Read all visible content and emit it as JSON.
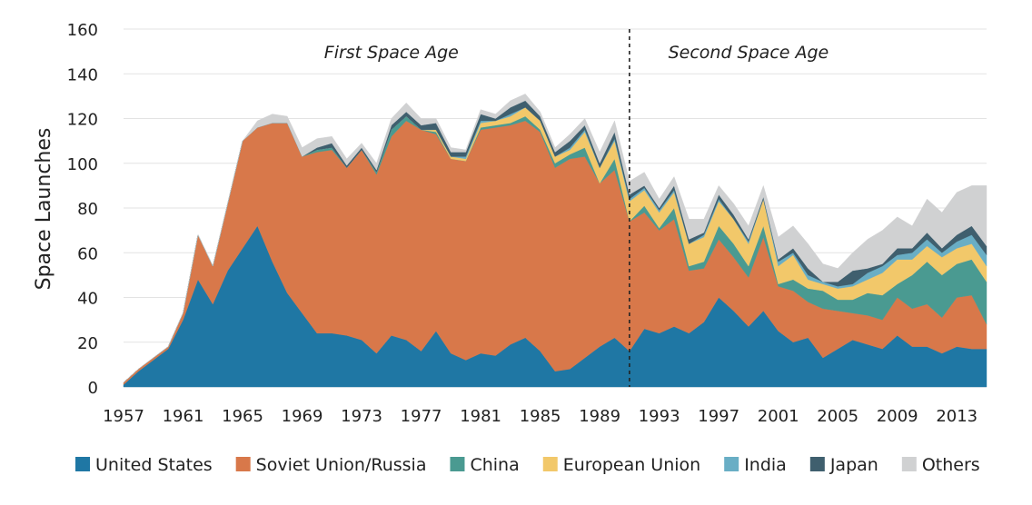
{
  "chart_data": {
    "type": "area",
    "stacked": true,
    "title": "",
    "xlabel": "",
    "ylabel": "Space Launches",
    "ylim": [
      0,
      160
    ],
    "yticks": [
      0,
      20,
      40,
      60,
      80,
      100,
      120,
      140,
      160
    ],
    "xlim": [
      1957,
      2015
    ],
    "xticks": [
      1957,
      1961,
      1965,
      1969,
      1973,
      1977,
      1981,
      1985,
      1989,
      1993,
      1997,
      2001,
      2005,
      2009,
      2013
    ],
    "grid": "horizontal",
    "legend_position": "bottom",
    "divider": {
      "year": 1991,
      "style": "dashed"
    },
    "annotations": [
      {
        "text": "First Space Age",
        "x": 1975
      },
      {
        "text": "Second Space Age",
        "x": 1999
      }
    ],
    "years": [
      1957,
      1958,
      1959,
      1960,
      1961,
      1962,
      1963,
      1964,
      1965,
      1966,
      1967,
      1968,
      1969,
      1970,
      1971,
      1972,
      1973,
      1974,
      1975,
      1976,
      1977,
      1978,
      1979,
      1980,
      1981,
      1982,
      1983,
      1984,
      1985,
      1986,
      1987,
      1988,
      1989,
      1990,
      1991,
      1992,
      1993,
      1994,
      1995,
      1996,
      1997,
      1998,
      1999,
      2000,
      2001,
      2002,
      2003,
      2004,
      2005,
      2006,
      2007,
      2008,
      2009,
      2010,
      2011,
      2012,
      2013,
      2014,
      2015
    ],
    "series": [
      {
        "name": "United States",
        "color": "#1f77a4",
        "values": [
          1,
          7,
          12,
          17,
          30,
          48,
          37,
          52,
          62,
          72,
          56,
          42,
          33,
          24,
          24,
          23,
          21,
          15,
          23,
          21,
          16,
          25,
          15,
          12,
          15,
          14,
          19,
          22,
          16,
          7,
          8,
          13,
          18,
          22,
          16,
          26,
          24,
          27,
          24,
          29,
          40,
          34,
          27,
          34,
          25,
          20,
          22,
          13,
          17,
          21,
          19,
          17,
          23,
          18,
          18,
          15,
          18,
          17,
          17
        ]
      },
      {
        "name": "Soviet Union/Russia",
        "color": "#d8784a",
        "values": [
          1,
          1,
          1,
          1,
          3,
          20,
          17,
          30,
          48,
          44,
          62,
          76,
          70,
          81,
          82,
          75,
          85,
          80,
          89,
          98,
          99,
          88,
          87,
          89,
          100,
          102,
          98,
          97,
          98,
          91,
          94,
          90,
          73,
          75,
          58,
          52,
          46,
          48,
          28,
          24,
          26,
          24,
          22,
          33,
          20,
          23,
          16,
          22,
          17,
          12,
          13,
          13,
          17,
          17,
          19,
          16,
          22,
          24,
          11
        ]
      },
      {
        "name": "China",
        "color": "#4a9a91",
        "values": [
          0,
          0,
          0,
          0,
          0,
          0,
          0,
          0,
          0,
          0,
          0,
          0,
          0,
          1,
          1,
          0,
          0,
          1,
          3,
          2,
          0,
          1,
          0,
          0,
          1,
          1,
          1,
          2,
          1,
          2,
          2,
          4,
          0,
          5,
          0,
          3,
          1,
          5,
          2,
          3,
          6,
          6,
          5,
          5,
          1,
          5,
          6,
          8,
          5,
          6,
          10,
          11,
          6,
          15,
          19,
          19,
          15,
          16,
          19
        ]
      },
      {
        "name": "European Union",
        "color": "#f2c86a",
        "values": [
          0,
          0,
          0,
          0,
          0,
          0,
          0,
          0,
          0,
          0,
          0,
          0,
          0,
          0,
          0,
          0,
          0,
          0,
          0,
          0,
          0,
          1,
          1,
          1,
          2,
          2,
          3,
          4,
          4,
          3,
          2,
          7,
          7,
          8,
          9,
          7,
          7,
          7,
          10,
          11,
          11,
          11,
          10,
          12,
          8,
          11,
          4,
          3,
          5,
          6,
          6,
          10,
          11,
          7,
          7,
          8,
          7,
          7,
          7
        ]
      },
      {
        "name": "India",
        "color": "#69aec5",
        "values": [
          0,
          0,
          0,
          0,
          0,
          0,
          0,
          0,
          0,
          0,
          0,
          0,
          0,
          0,
          0,
          0,
          0,
          0,
          0,
          0,
          0,
          0,
          0,
          1,
          1,
          0,
          1,
          0,
          0,
          0,
          1,
          1,
          0,
          1,
          1,
          1,
          1,
          1,
          0,
          1,
          1,
          0,
          1,
          0,
          2,
          1,
          2,
          1,
          1,
          1,
          3,
          3,
          2,
          3,
          3,
          2,
          3,
          4,
          5
        ]
      },
      {
        "name": "Japan",
        "color": "#3f5f6e",
        "values": [
          0,
          0,
          0,
          0,
          0,
          0,
          0,
          0,
          0,
          0,
          0,
          0,
          0,
          1,
          2,
          1,
          1,
          1,
          2,
          2,
          2,
          3,
          2,
          2,
          3,
          1,
          3,
          3,
          2,
          2,
          3,
          2,
          2,
          3,
          2,
          1,
          1,
          2,
          2,
          1,
          2,
          2,
          1,
          1,
          1,
          2,
          3,
          0,
          2,
          6,
          2,
          1,
          3,
          2,
          3,
          2,
          3,
          4,
          4
        ]
      },
      {
        "name": "Others",
        "color": "#d0d1d2",
        "values": [
          0,
          0,
          0,
          0,
          0,
          0,
          0,
          0,
          0,
          3,
          4,
          3,
          4,
          4,
          3,
          3,
          2,
          3,
          3,
          4,
          3,
          2,
          2,
          1,
          2,
          2,
          3,
          3,
          2,
          2,
          3,
          3,
          5,
          5,
          6,
          6,
          4,
          4,
          9,
          6,
          4,
          5,
          6,
          5,
          10,
          10,
          11,
          8,
          6,
          8,
          13,
          15,
          14,
          10,
          15,
          16,
          19,
          18,
          27
        ]
      }
    ]
  }
}
